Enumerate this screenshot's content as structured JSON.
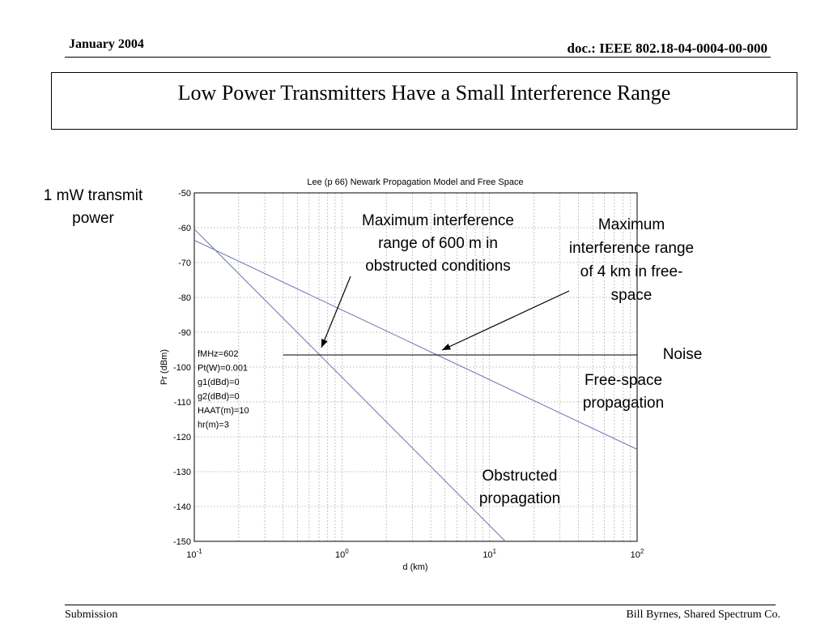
{
  "header": {
    "date": "January 2004",
    "doc": "doc.: IEEE 802.18-04-0004-00-000"
  },
  "slide": {
    "title": "Low Power Transmitters Have a Small Interference Range"
  },
  "notes": {
    "tx_power": [
      "1 mW transmit",
      "power"
    ],
    "max_obstructed": [
      "Maximum interference",
      "range of 600 m in",
      "obstructed conditions"
    ],
    "max_free": [
      "Maximum",
      "interference range",
      "of 4 km in free-",
      "space"
    ],
    "noise": "Noise",
    "free_space": [
      "Free-space",
      "propagation"
    ],
    "obstructed": [
      "Obstructed",
      "propagation"
    ]
  },
  "footer": {
    "left": "Submission",
    "right": "Bill Byrnes, Shared Spectrum Co."
  },
  "chart_data": {
    "type": "line",
    "title": "Lee (p 66) Newark Propagation Model and Free Space",
    "xlabel": "d (km)",
    "ylabel": "Pr (dBm)",
    "xscale": "log",
    "xlim": [
      0.1,
      100
    ],
    "ylim": [
      -150,
      -50
    ],
    "grid": true,
    "x_ticks": [
      {
        "base": "10",
        "exp": "-1",
        "value": 0.1
      },
      {
        "base": "10",
        "exp": "0",
        "value": 1
      },
      {
        "base": "10",
        "exp": "1",
        "value": 10
      },
      {
        "base": "10",
        "exp": "2",
        "value": 100
      }
    ],
    "y_ticks": [
      -50,
      -60,
      -70,
      -80,
      -90,
      -100,
      -110,
      -120,
      -130,
      -140,
      -150
    ],
    "parameters": [
      "fMHz=602",
      "Pt(W)=0.001",
      "g1(dBd)=0",
      "g2(dBd)=0",
      "HAAT(m)=10",
      "hr(m)=3"
    ],
    "series": [
      {
        "x": [
          0.1,
          100
        ],
        "y": [
          -63.6,
          -123.6
        ],
        "color": "#6b73b5"
      },
      {
        "x": [
          0.1,
          12.8
        ],
        "y": [
          -60.4,
          -150
        ],
        "color": "#6b73b5"
      },
      {
        "x": [
          0.4,
          100
        ],
        "y": [
          -96.5,
          -96.5
        ],
        "color": "#000000"
      }
    ]
  }
}
